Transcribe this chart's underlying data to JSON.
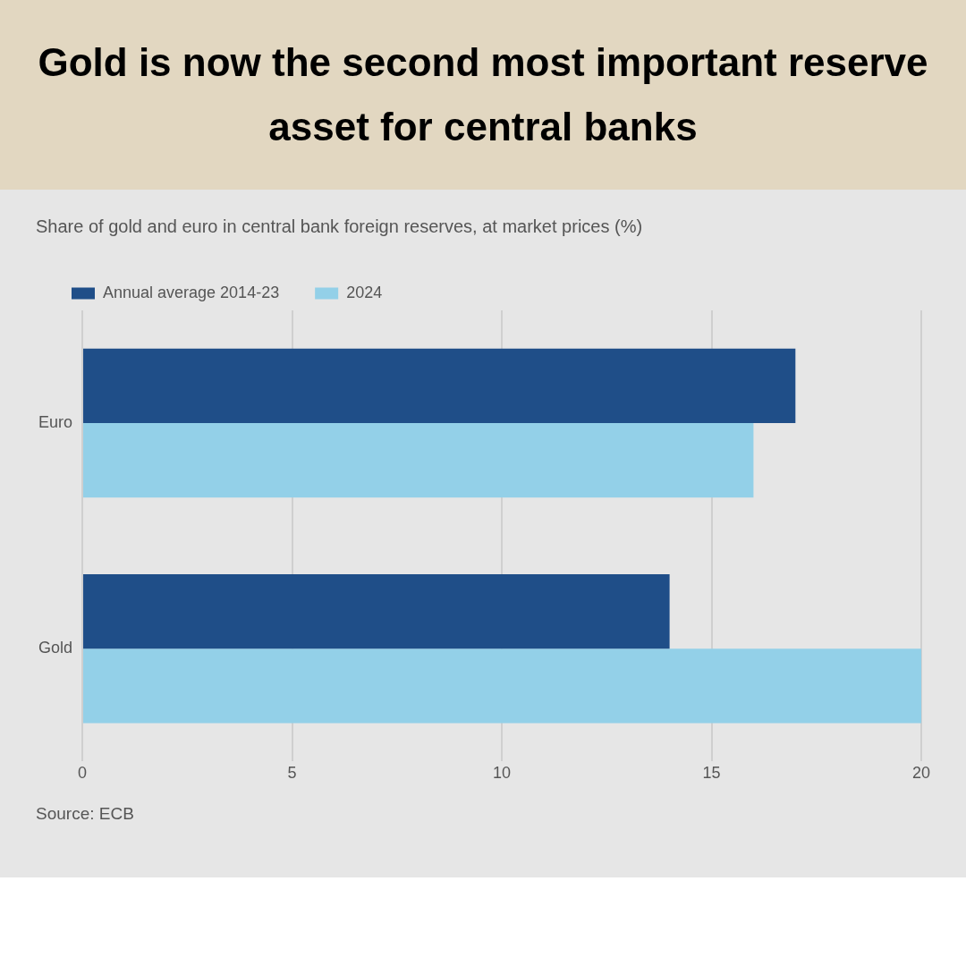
{
  "chart_data": {
    "type": "bar",
    "orientation": "horizontal",
    "title": "Gold is now the second most important reserve asset for central banks",
    "subtitle": "Share of gold and euro in central bank foreign reserves, at market prices (%)",
    "categories": [
      "Euro",
      "Gold"
    ],
    "series": [
      {
        "name": "Annual average 2014-23",
        "color": "#1f4e88",
        "values": [
          17,
          14
        ]
      },
      {
        "name": "2024",
        "color": "#93d0e8",
        "values": [
          16,
          20
        ]
      }
    ],
    "xlim": [
      0,
      20
    ],
    "xticks": [
      0,
      5,
      10,
      15,
      20
    ],
    "grid": "x",
    "legend": "top left",
    "annotations": [
      "Source: ECB"
    ]
  }
}
